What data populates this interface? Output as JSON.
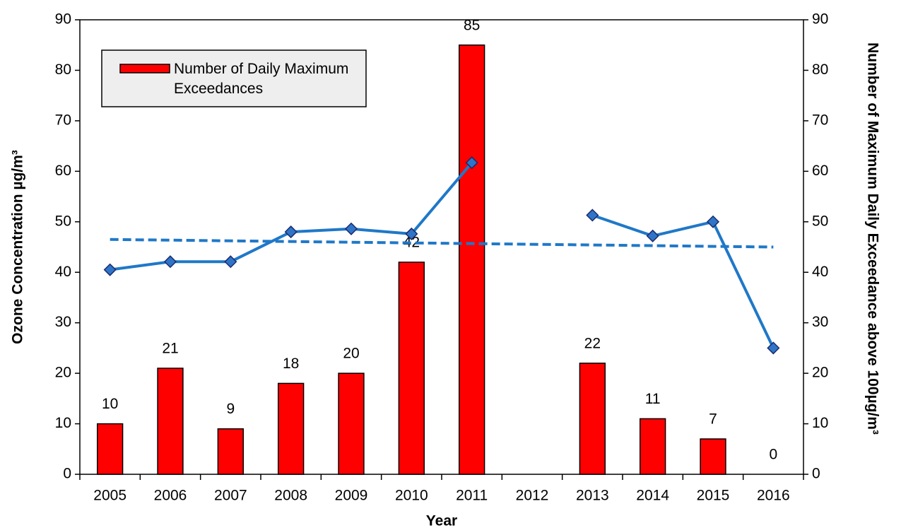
{
  "chart_data": {
    "type": "bar-line",
    "x_label": "Year",
    "y_label": "Ozone Concentration µg/m³",
    "y2_label": "Number of Maximum Daily Exceedance above 100µg/m³",
    "categories": [
      "2005",
      "2006",
      "2007",
      "2008",
      "2009",
      "2010",
      "2011",
      "2012",
      "2013",
      "2014",
      "2015",
      "2016"
    ],
    "series": [
      {
        "name": "Number of Daily Maximum Exceedances",
        "type": "bar",
        "axis": "y2",
        "color": "#ff0000",
        "values": [
          10,
          21,
          9,
          18,
          20,
          42,
          85,
          null,
          22,
          11,
          7,
          0
        ]
      },
      {
        "type": "line",
        "axis": "y",
        "color": "#1f78c8",
        "values": [
          40.5,
          42.1,
          42.1,
          48.0,
          48.6,
          47.6,
          61.7,
          null,
          51.3,
          47.2,
          50.0,
          25.0
        ]
      }
    ],
    "trendline": {
      "color": "#1f78c8",
      "dashed": true,
      "values": [
        46.5,
        45.0
      ]
    },
    "ylim": [
      0,
      90
    ],
    "yticks": [
      0,
      10,
      20,
      30,
      40,
      50,
      60,
      70,
      80,
      90
    ],
    "y2lim": [
      0,
      90
    ],
    "y2ticks": [
      0,
      10,
      20,
      30,
      40,
      50,
      60,
      70,
      80,
      90
    ],
    "grid": false
  }
}
